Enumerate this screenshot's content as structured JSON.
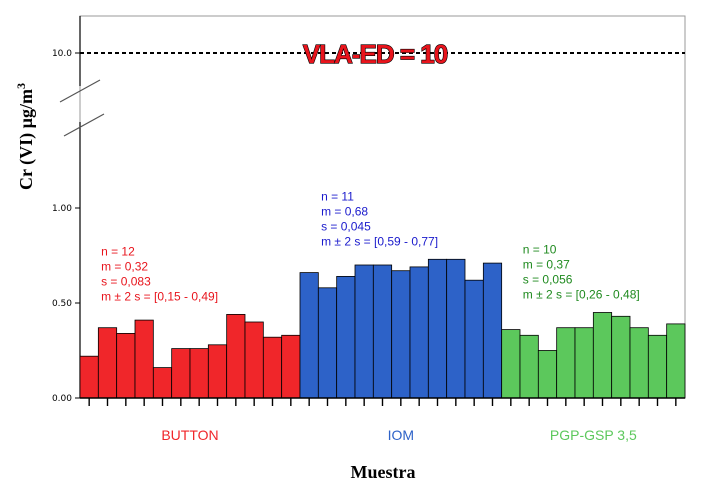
{
  "chart_data": {
    "type": "bar",
    "xlabel": "Muestra",
    "ylabel": "Cr (VI) µg/m³",
    "ylabel_parts": {
      "main": "Cr (VI) µg/m",
      "sup": "3"
    },
    "ylim": [
      0,
      1.0
    ],
    "yticks": [
      "0.00",
      "0.50",
      "1.00"
    ],
    "ytick_values": [
      0,
      0.5,
      1.0
    ],
    "broken_axis": true,
    "break_tick": {
      "label": "10.0",
      "value": 10.0
    },
    "reference_line": {
      "label": "VLA-ED = 10",
      "value": 10,
      "style": "dashed"
    },
    "grid": false,
    "groups": [
      {
        "name": "BUTTON",
        "color": "#f0262a",
        "values": [
          0.22,
          0.37,
          0.34,
          0.41,
          0.16,
          0.26,
          0.26,
          0.28,
          0.44,
          0.4,
          0.32,
          0.33
        ],
        "stats": [
          "n = 12",
          "m = 0,32",
          "s = 0,083",
          "m ± 2 s = [0,15 - 0,49]"
        ],
        "stats_color": "#e8141c"
      },
      {
        "name": "IOM",
        "color": "#2d62c8",
        "values": [
          0.66,
          0.58,
          0.64,
          0.7,
          0.7,
          0.67,
          0.69,
          0.73,
          0.73,
          0.62,
          0.71
        ],
        "stats": [
          "n = 11",
          "m = 0,68",
          "s = 0,045",
          "m ± 2 s = [0,59 - 0,77]"
        ],
        "stats_color": "#1a1acc"
      },
      {
        "name": "PGP-GSP 3,5",
        "color": "#5cc85c",
        "values": [
          0.36,
          0.33,
          0.25,
          0.37,
          0.37,
          0.45,
          0.43,
          0.37,
          0.33,
          0.39
        ],
        "stats": [
          "n = 10",
          "m = 0,37",
          "s = 0,056",
          "m ± 2 s = [0,26 - 0,48]"
        ],
        "stats_color": "#1f8a1f"
      }
    ]
  }
}
